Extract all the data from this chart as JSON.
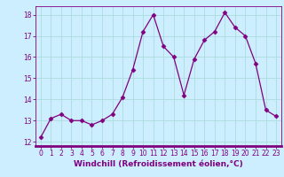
{
  "x": [
    0,
    1,
    2,
    3,
    4,
    5,
    6,
    7,
    8,
    9,
    10,
    11,
    12,
    13,
    14,
    15,
    16,
    17,
    18,
    19,
    20,
    21,
    22,
    23
  ],
  "y": [
    12.2,
    13.1,
    13.3,
    13.0,
    13.0,
    12.8,
    13.0,
    13.3,
    14.1,
    15.4,
    17.2,
    18.0,
    16.5,
    16.0,
    14.2,
    15.9,
    16.8,
    17.2,
    18.1,
    17.4,
    17.0,
    15.7,
    13.5,
    13.2
  ],
  "line_color": "#800080",
  "marker": "D",
  "marker_size": 2.5,
  "bg_color": "#cceeff",
  "grid_color": "#aadddd",
  "xlabel": "Windchill (Refroidissement éolien,°C)",
  "xlabel_color": "#800080",
  "xlabel_fontsize": 6.5,
  "tick_color": "#800080",
  "tick_fontsize": 5.5,
  "ylim": [
    11.8,
    18.4
  ],
  "xlim": [
    -0.5,
    23.5
  ],
  "yticks": [
    12,
    13,
    14,
    15,
    16,
    17,
    18
  ],
  "xticks": [
    0,
    1,
    2,
    3,
    4,
    5,
    6,
    7,
    8,
    9,
    10,
    11,
    12,
    13,
    14,
    15,
    16,
    17,
    18,
    19,
    20,
    21,
    22,
    23
  ]
}
